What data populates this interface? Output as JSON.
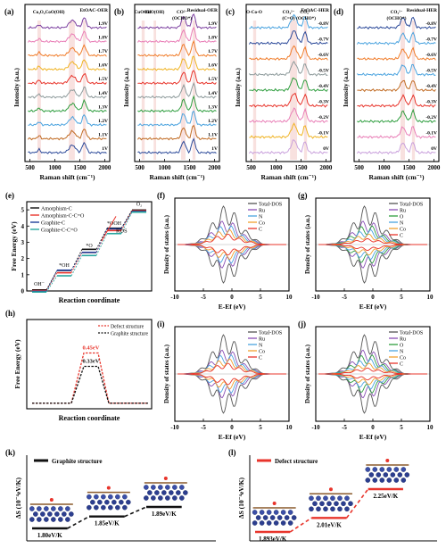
{
  "chart_data": [
    {
      "panel": "(a)",
      "type": "line",
      "inline_title": "EtOAC-OER",
      "xlabel": "Raman shift (cm⁻¹)",
      "ylabel": "Intensity (a.u.)",
      "xlim": [
        400,
        2100
      ],
      "xticks": [
        500,
        1000,
        1500,
        2000
      ],
      "peak_labels": [
        {
          "text": "Co₃O₄",
          "x": 680
        },
        {
          "text": "CoO(OH)",
          "x": 1000
        }
      ],
      "shaded_bands": [
        [
          650,
          720
        ],
        [
          1280,
          1400
        ],
        [
          1560,
          1620
        ]
      ],
      "peaks": [
        {
          "center": 680,
          "width": 40,
          "height": 0.25
        },
        {
          "center": 1350,
          "width": 90,
          "height": 0.6
        },
        {
          "center": 1590,
          "width": 55,
          "height": 0.8
        }
      ],
      "series": [
        {
          "name": "1.9V",
          "color": "#7b3fa0"
        },
        {
          "name": "1.8V",
          "color": "#e97fb7"
        },
        {
          "name": "1.7V",
          "color": "#f07c2a"
        },
        {
          "name": "1.6V",
          "color": "#f0b323"
        },
        {
          "name": "1.5V",
          "color": "#e8342b"
        },
        {
          "name": "1.4V",
          "color": "#8d9a9b"
        },
        {
          "name": "1.3V",
          "color": "#2f9e3f"
        },
        {
          "name": "1.2V",
          "color": "#4aa3df"
        },
        {
          "name": "1.1V",
          "color": "#c06a22"
        },
        {
          "name": "1V",
          "color": "#2c4a9a"
        }
      ]
    },
    {
      "panel": "(b)",
      "type": "line",
      "inline_title": "Residual-OER",
      "xlabel": "Raman shift (cm⁻¹)",
      "ylabel": "Intensity (a.u.)",
      "xlim": [
        400,
        2100
      ],
      "xticks": [
        500,
        1000,
        1500,
        2000
      ],
      "peak_labels": [
        {
          "text": "CuOOH",
          "x": 560
        },
        {
          "text": "CoO(OH)",
          "x": 800
        },
        {
          "text": "CO²⁻",
          "x": 1350
        },
        {
          "text": "(OCHO*)",
          "x": 1350
        }
      ],
      "shaded_bands": [
        [
          540,
          600
        ],
        [
          780,
          830
        ],
        [
          1330,
          1420
        ],
        [
          1560,
          1620
        ]
      ],
      "peaks": [
        {
          "center": 1380,
          "width": 60,
          "height": 0.9
        },
        {
          "center": 1580,
          "width": 50,
          "height": 1.1
        }
      ],
      "series": [
        {
          "name": "1.9V",
          "color": "#7b3fa0"
        },
        {
          "name": "1.8V",
          "color": "#e97fb7"
        },
        {
          "name": "1.7V",
          "color": "#f07c2a"
        },
        {
          "name": "1.6V",
          "color": "#f0b323"
        },
        {
          "name": "1.5V",
          "color": "#e8342b"
        },
        {
          "name": "1.4V",
          "color": "#8d9a9b"
        },
        {
          "name": "1.3V",
          "color": "#2f9e3f"
        },
        {
          "name": "1.2V",
          "color": "#4aa3df"
        },
        {
          "name": "1.1V",
          "color": "#c06a22"
        },
        {
          "name": "1V",
          "color": "#2c4a9a"
        }
      ]
    },
    {
      "panel": "(c)",
      "type": "line",
      "inline_title": "EtOAC-HER",
      "xlabel": "Raman shift (cm⁻¹)",
      "ylabel": "Intensity (a.u.)",
      "xlim": [
        400,
        2100
      ],
      "xticks": [
        500,
        1000,
        1500,
        2000
      ],
      "peak_labels": [
        {
          "text": "O-Co-O",
          "x": 560
        },
        {
          "text": "CO₃²⁻",
          "x": 1250
        },
        {
          "text": "(C=O)",
          "x": 1250
        },
        {
          "text": "CO₃²⁻",
          "x": 1600
        },
        {
          "text": "(OCHO*)",
          "x": 1600
        }
      ],
      "shaded_bands": [
        [
          540,
          600
        ],
        [
          1280,
          1420
        ],
        [
          1560,
          1620
        ]
      ],
      "peaks": [
        {
          "center": 1360,
          "width": 80,
          "height": 0.9
        },
        {
          "center": 1580,
          "width": 50,
          "height": 0.8
        }
      ],
      "series": [
        {
          "name": "-0.8V",
          "color": "#4aa3df"
        },
        {
          "name": "-0.7V",
          "color": "#2c4a9a"
        },
        {
          "name": "-0.6V",
          "color": "#f07c2a"
        },
        {
          "name": "-0.5V",
          "color": "#8d9a9b"
        },
        {
          "name": "-0.4V",
          "color": "#2f9e3f"
        },
        {
          "name": "-0.3V",
          "color": "#e8342b"
        },
        {
          "name": "-0.2V",
          "color": "#e97fb7"
        },
        {
          "name": "-0.1V",
          "color": "#f0b323"
        },
        {
          "name": "0V",
          "color": "#c9a0dc"
        }
      ]
    },
    {
      "panel": "(d)",
      "type": "line",
      "inline_title": "Residual-HER",
      "xlabel": "Raman shift (cm⁻¹)",
      "ylabel": "Intensity (a.u.)",
      "xlim": [
        400,
        2100
      ],
      "xticks": [
        500,
        1000,
        1500,
        2000
      ],
      "peak_labels": [
        {
          "text": "CO₃²⁻",
          "x": 1250
        },
        {
          "text": "(OCHO*)",
          "x": 1250
        }
      ],
      "shaded_bands": [
        [
          1330,
          1420
        ],
        [
          1560,
          1620
        ]
      ],
      "peaks": [
        {
          "center": 1380,
          "width": 70,
          "height": 0.7
        },
        {
          "center": 1580,
          "width": 50,
          "height": 0.75
        }
      ],
      "series": [
        {
          "name": "-0.8V",
          "color": "#2c4a9a"
        },
        {
          "name": "-0.7V",
          "color": "#4aa3df"
        },
        {
          "name": "-0.6V",
          "color": "#f07c2a"
        },
        {
          "name": "-0.5V",
          "color": "#4aa3df"
        },
        {
          "name": "-0.4V",
          "color": "#c06a22"
        },
        {
          "name": "-0.3V",
          "color": "#e8342b"
        },
        {
          "name": "-0.2V",
          "color": "#2f9e3f"
        },
        {
          "name": "-0.1V",
          "color": "#e97fb7"
        },
        {
          "name": "0V",
          "color": "#c9a0dc"
        }
      ]
    },
    {
      "panel": "(e)",
      "type": "line",
      "xlabel": "Reaction coordinate",
      "ylabel": "Free Energy (eV)",
      "ylim": [
        0,
        5.5
      ],
      "yticks": [
        0,
        1,
        2,
        3,
        4,
        5
      ],
      "step_labels": [
        "OH⁻",
        "*OH",
        "*O",
        "*OOH",
        "O₂"
      ],
      "annotation": "RDS",
      "series": [
        {
          "name": "Amorphism-C",
          "color": "#111111",
          "values": [
            0,
            1.2,
            2.5,
            3.8,
            4.92
          ]
        },
        {
          "name": "Amorphism-C-C=O",
          "color": "#e8342b",
          "values": [
            0,
            1.1,
            2.35,
            3.7,
            4.92
          ]
        },
        {
          "name": "Graphite-C",
          "color": "#1f3f9a",
          "values": [
            0,
            1.3,
            2.4,
            3.85,
            4.92
          ]
        },
        {
          "name": "Graphite-C-C=O",
          "color": "#2aa7a0",
          "values": [
            0,
            1.0,
            2.25,
            3.6,
            4.92
          ]
        }
      ]
    },
    {
      "panel": "(f)",
      "type": "line",
      "xlabel": "E-Ef (eV)",
      "ylabel": "Density of states (a.u.)",
      "xlim": [
        -10,
        10
      ],
      "xticks": [
        -10,
        -5,
        0,
        5,
        10
      ],
      "series": [
        {
          "name": "Total-DOS",
          "color": "#555555"
        },
        {
          "name": "Ru",
          "color": "#8a4fb5"
        },
        {
          "name": "N",
          "color": "#4aa3df"
        },
        {
          "name": "Co",
          "color": "#f0a030"
        },
        {
          "name": "C",
          "color": "#e8342b"
        }
      ]
    },
    {
      "panel": "(g)",
      "type": "line",
      "xlabel": "E-Ef (eV)",
      "ylabel": "Density of states (a.u.)",
      "xlim": [
        -10,
        10
      ],
      "xticks": [
        -10,
        -5,
        0,
        5,
        10
      ],
      "series": [
        {
          "name": "Total-DOS",
          "color": "#555555"
        },
        {
          "name": "Ru",
          "color": "#8a4fb5"
        },
        {
          "name": "O",
          "color": "#2f9e3f"
        },
        {
          "name": "N",
          "color": "#4aa3df"
        },
        {
          "name": "Co",
          "color": "#f0a030"
        },
        {
          "name": "C",
          "color": "#e8342b"
        }
      ]
    },
    {
      "panel": "(h)",
      "type": "line",
      "xlabel": "Reaction coordinate",
      "ylabel": "Free Energy (eV)",
      "ylim": [
        -0.05,
        0.75
      ],
      "series": [
        {
          "name": "Defect structure",
          "color": "#e8342b",
          "values": [
            0,
            0,
            0.45,
            0,
            0
          ],
          "peak_label": "0.45eV"
        },
        {
          "name": "Graphite structure",
          "color": "#111111",
          "values": [
            0,
            0,
            0.33,
            0,
            0
          ],
          "peak_label": "0.33eV"
        }
      ]
    },
    {
      "panel": "(i)",
      "type": "line",
      "xlabel": "E-Ef (eV)",
      "ylabel": "Density of states (a.u.)",
      "xlim": [
        -10,
        10
      ],
      "xticks": [
        -10,
        -5,
        0,
        5,
        10
      ],
      "series": [
        {
          "name": "Total-DOS",
          "color": "#555555"
        },
        {
          "name": "Ru",
          "color": "#8a4fb5"
        },
        {
          "name": "N",
          "color": "#4aa3df"
        },
        {
          "name": "Co",
          "color": "#f0a030"
        },
        {
          "name": "C",
          "color": "#e8342b"
        }
      ]
    },
    {
      "panel": "(j)",
      "type": "line",
      "xlabel": "E-Ef (eV)",
      "ylabel": "Density of states (a.u.)",
      "xlim": [
        -10,
        10
      ],
      "xticks": [
        -10,
        -5,
        0,
        5,
        10
      ],
      "series": [
        {
          "name": "Total-DOS",
          "color": "#555555"
        },
        {
          "name": "Ru",
          "color": "#8a4fb5"
        },
        {
          "name": "O",
          "color": "#2f9e3f"
        },
        {
          "name": "N",
          "color": "#4aa3df"
        },
        {
          "name": "Co",
          "color": "#f0a030"
        },
        {
          "name": "C",
          "color": "#e8342b"
        }
      ]
    },
    {
      "panel": "(k)",
      "type": "line",
      "ylabel": "ΔS (10⁻⁴eV/K)",
      "series": [
        {
          "name": "Graphite structure",
          "color": "#111111",
          "values": [
            1.8,
            1.85,
            1.89
          ],
          "labels": [
            "1.80eV/K",
            "1.85eV/K",
            "1.89eV/K"
          ]
        }
      ]
    },
    {
      "panel": "(l)",
      "type": "line",
      "ylabel": "ΔS (10⁻⁴eV/K)",
      "series": [
        {
          "name": "Defect structure",
          "color": "#e8342b",
          "values": [
            1.893,
            2.01,
            2.25
          ],
          "labels": [
            "1.893eV/K",
            "2.01eV/K",
            "2.25eV/K"
          ]
        }
      ]
    }
  ]
}
